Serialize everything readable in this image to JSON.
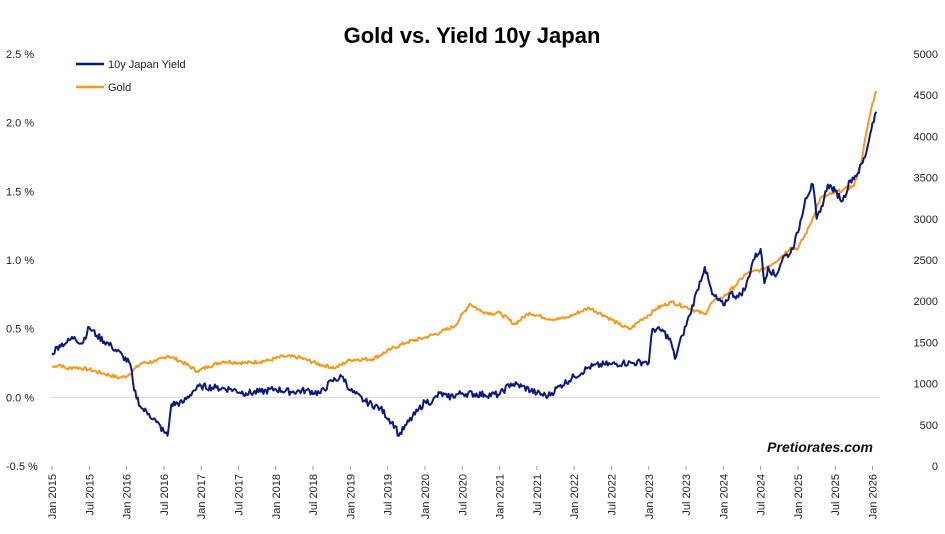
{
  "chart_data": {
    "type": "line",
    "title": "Gold vs. Yield 10y Japan",
    "watermark": "Pretiorates.com",
    "left_axis": {
      "ylim": [
        -0.5,
        2.5
      ],
      "ticks": [
        -0.5,
        0.0,
        0.5,
        1.0,
        1.5,
        2.0,
        2.5
      ],
      "tick_labels": [
        "-0.5 %",
        "0.0 %",
        "0.5 %",
        "1.0 %",
        "1.5 %",
        "2.0 %",
        "2.5 %"
      ]
    },
    "right_axis": {
      "ylim": [
        0,
        5000
      ],
      "ticks": [
        0,
        500,
        1000,
        1500,
        2000,
        2500,
        3000,
        3500,
        4000,
        4500,
        5000
      ],
      "tick_labels": [
        "0",
        "500",
        "1000",
        "1500",
        "2000",
        "2500",
        "3000",
        "3500",
        "4000",
        "4500",
        "5000"
      ]
    },
    "x_axis": {
      "xlim": [
        2015.0,
        2026.1
      ],
      "ticks": [
        2015.0,
        2015.5,
        2016.0,
        2016.5,
        2017.0,
        2017.5,
        2018.0,
        2018.5,
        2019.0,
        2019.5,
        2020.0,
        2020.5,
        2021.0,
        2021.5,
        2022.0,
        2022.5,
        2023.0,
        2023.5,
        2024.0,
        2024.5,
        2025.0,
        2025.5,
        2026.0
      ],
      "tick_labels": [
        "Jan 2015",
        "Jul 2015",
        "Jan 2016",
        "Jul 2016",
        "Jan 2017",
        "Jul 2017",
        "Jan 2018",
        "Jul 2018",
        "Jan 2019",
        "Jul 2019",
        "Jan 2020",
        "Jul 2020",
        "Jan 2021",
        "Jul 2021",
        "Jan 2022",
        "Jul 2022",
        "Jan 2023",
        "Jul 2023",
        "Jan 2024",
        "Jul 2024",
        "Jan 2025",
        "Jul 2025",
        "Jan 2026"
      ]
    },
    "legend_position": "top-left",
    "series": [
      {
        "name": "10y Japan Yield",
        "axis": "left",
        "color": "#0d1a7a",
        "x": [
          2015.0,
          2015.1,
          2015.2,
          2015.3,
          2015.4,
          2015.5,
          2015.6,
          2015.8,
          2015.95,
          2016.05,
          2016.1,
          2016.2,
          2016.3,
          2016.4,
          2016.5,
          2016.55,
          2016.6,
          2016.75,
          2016.9,
          2017.0,
          2017.2,
          2017.4,
          2017.6,
          2017.8,
          2018.0,
          2018.2,
          2018.4,
          2018.6,
          2018.75,
          2018.9,
          2019.0,
          2019.2,
          2019.4,
          2019.6,
          2019.65,
          2019.75,
          2019.9,
          2020.0,
          2020.1,
          2020.2,
          2020.3,
          2020.5,
          2020.8,
          2021.0,
          2021.15,
          2021.3,
          2021.5,
          2021.65,
          2021.8,
          2022.0,
          2022.2,
          2022.4,
          2022.5,
          2022.65,
          2022.8,
          2022.95,
          2023.0,
          2023.05,
          2023.2,
          2023.3,
          2023.35,
          2023.45,
          2023.55,
          2023.65,
          2023.75,
          2023.85,
          2024.0,
          2024.1,
          2024.2,
          2024.3,
          2024.4,
          2024.5,
          2024.55,
          2024.6,
          2024.7,
          2024.8,
          2024.9,
          2025.0,
          2025.1,
          2025.2,
          2025.25,
          2025.3,
          2025.4,
          2025.5,
          2025.6,
          2025.7,
          2025.8,
          2025.9,
          2026.0,
          2026.05
        ],
        "values": [
          0.32,
          0.38,
          0.4,
          0.44,
          0.39,
          0.51,
          0.45,
          0.37,
          0.3,
          0.24,
          0.05,
          -0.08,
          -0.12,
          -0.18,
          -0.25,
          -0.28,
          -0.05,
          -0.04,
          0.05,
          0.08,
          0.07,
          0.06,
          0.03,
          0.04,
          0.06,
          0.04,
          0.05,
          0.03,
          0.12,
          0.15,
          0.05,
          -0.03,
          -0.08,
          -0.21,
          -0.28,
          -0.2,
          -0.1,
          -0.03,
          -0.03,
          0.03,
          0.0,
          0.03,
          0.02,
          0.02,
          0.1,
          0.08,
          0.03,
          0.01,
          0.08,
          0.15,
          0.22,
          0.24,
          0.24,
          0.25,
          0.25,
          0.26,
          0.25,
          0.5,
          0.48,
          0.4,
          0.28,
          0.45,
          0.6,
          0.78,
          0.95,
          0.75,
          0.67,
          0.76,
          0.73,
          0.8,
          1.0,
          1.08,
          0.83,
          0.95,
          0.88,
          1.02,
          1.05,
          1.2,
          1.45,
          1.55,
          1.3,
          1.35,
          1.55,
          1.5,
          1.43,
          1.58,
          1.63,
          1.75,
          2.0,
          2.08
        ]
      },
      {
        "name": "Gold",
        "axis": "right",
        "color": "#f29a1f",
        "x": [
          2015.0,
          2015.1,
          2015.2,
          2015.3,
          2015.5,
          2015.7,
          2015.9,
          2016.0,
          2016.2,
          2016.4,
          2016.55,
          2016.75,
          2016.95,
          2017.1,
          2017.3,
          2017.6,
          2017.9,
          2018.1,
          2018.3,
          2018.6,
          2018.8,
          2019.0,
          2019.3,
          2019.55,
          2019.75,
          2020.0,
          2020.2,
          2020.4,
          2020.6,
          2020.75,
          2020.9,
          2021.0,
          2021.2,
          2021.4,
          2021.6,
          2021.75,
          2021.9,
          2022.0,
          2022.2,
          2022.4,
          2022.6,
          2022.75,
          2022.9,
          2023.0,
          2023.1,
          2023.3,
          2023.5,
          2023.75,
          2023.85,
          2024.0,
          2024.15,
          2024.3,
          2024.5,
          2024.6,
          2024.75,
          2024.9,
          2025.0,
          2025.15,
          2025.3,
          2025.45,
          2025.6,
          2025.75,
          2025.85,
          2025.95,
          2026.0,
          2026.05
        ],
        "values": [
          1200,
          1230,
          1180,
          1200,
          1170,
          1120,
          1070,
          1090,
          1250,
          1270,
          1340,
          1260,
          1150,
          1210,
          1270,
          1250,
          1280,
          1330,
          1320,
          1230,
          1190,
          1290,
          1300,
          1420,
          1500,
          1560,
          1620,
          1700,
          1970,
          1880,
          1850,
          1860,
          1720,
          1860,
          1800,
          1780,
          1800,
          1840,
          1920,
          1830,
          1720,
          1660,
          1780,
          1830,
          1910,
          1990,
          1930,
          1840,
          1990,
          2050,
          2180,
          2330,
          2380,
          2420,
          2520,
          2650,
          2640,
          2900,
          3250,
          3300,
          3350,
          3400,
          3700,
          4200,
          4400,
          4550
        ]
      }
    ]
  }
}
